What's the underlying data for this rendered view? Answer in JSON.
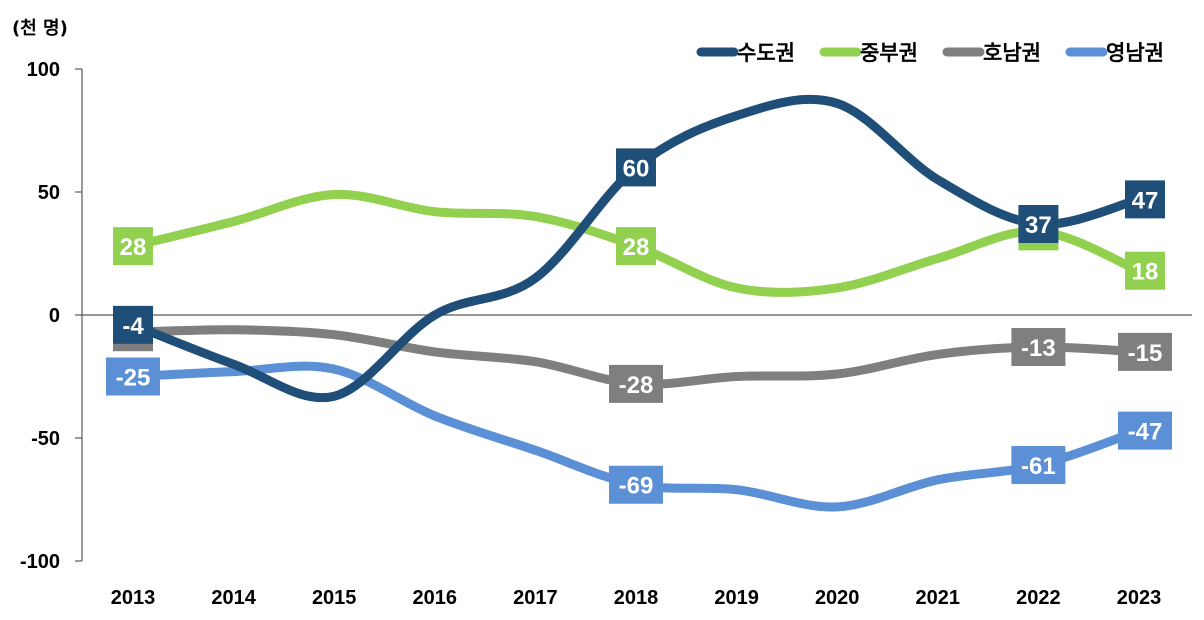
{
  "chart_data": {
    "type": "line",
    "unit_label": "(천 명)",
    "categories": [
      "2013",
      "2014",
      "2015",
      "2016",
      "2017",
      "2018",
      "2019",
      "2020",
      "2021",
      "2022",
      "2023"
    ],
    "ylim": [
      -100,
      100
    ],
    "yticks": [
      100,
      50,
      0,
      -50,
      -100
    ],
    "legend_position": "top-right",
    "smooth": true,
    "series": [
      {
        "name": "수도권",
        "color": "#1f4e79",
        "values": [
          -4,
          -20,
          -33,
          0,
          15,
          60,
          81,
          86,
          55,
          37,
          47
        ],
        "labeled": [
          0,
          5,
          9,
          10
        ]
      },
      {
        "name": "중부권",
        "color": "#92d050",
        "values": [
          28,
          38,
          49,
          42,
          40,
          28,
          11,
          11,
          23,
          34,
          18
        ],
        "labeled": [
          0,
          5,
          9,
          10
        ]
      },
      {
        "name": "호남권",
        "color": "#7f7f7f",
        "values": [
          -7,
          -6,
          -8,
          -15,
          -19,
          -28,
          -25,
          -24,
          -16,
          -13,
          -15
        ],
        "labeled": [
          0,
          5,
          9,
          10
        ]
      },
      {
        "name": "영남권",
        "color": "#5b8fd6",
        "values": [
          -25,
          -23,
          -22,
          -41,
          -55,
          -69,
          -71,
          -78,
          -67,
          -61,
          -47
        ],
        "labeled": [
          0,
          5,
          9,
          10
        ]
      }
    ]
  }
}
